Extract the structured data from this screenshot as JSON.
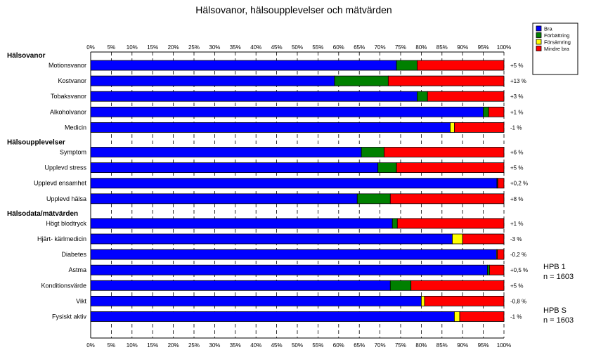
{
  "chart_data": {
    "type": "bar",
    "stacked": true,
    "orientation": "horizontal",
    "title": "Hälsovanor, hälsoupplevelser och mätvärden",
    "xlim": [
      0,
      100
    ],
    "xticks": [
      "0%",
      "5%",
      "10%",
      "15%",
      "20%",
      "25%",
      "30%",
      "35%",
      "40%",
      "45%",
      "50%",
      "55%",
      "60%",
      "65%",
      "70%",
      "75%",
      "80%",
      "85%",
      "90%",
      "95%",
      "100%"
    ],
    "grid": true,
    "legend_position": "top-right",
    "legend": [
      {
        "name": "Bra",
        "color": "#0000ff"
      },
      {
        "name": "Förbättring",
        "color": "#008000"
      },
      {
        "name": "Försämring",
        "color": "#ffff00"
      },
      {
        "name": "Mindre bra",
        "color": "#ff0000"
      }
    ],
    "groups": [
      {
        "label": "Hälsovanor",
        "rows": [
          {
            "category": "Motionsvanor",
            "values": [
              74,
              5,
              0,
              21
            ],
            "change": "+5 %"
          },
          {
            "category": "Kostvanor",
            "values": [
              59,
              13,
              0,
              28
            ],
            "change": "+13 %"
          },
          {
            "category": "Tobaksvanor",
            "values": [
              79,
              2.5,
              0,
              18.5
            ],
            "change": "+3 %"
          },
          {
            "category": "Alkoholvanor",
            "values": [
              95,
              1.3,
              0,
              3.7
            ],
            "change": "+1 %"
          },
          {
            "category": "Medicin",
            "values": [
              87,
              0,
              1,
              12
            ],
            "change": "-1 %"
          }
        ]
      },
      {
        "label": "Hälsoupplevelser",
        "rows": [
          {
            "category": "Symptom",
            "values": [
              65.5,
              5.5,
              0,
              29
            ],
            "change": "+6 %"
          },
          {
            "category": "Upplevd stress",
            "values": [
              69.5,
              4.5,
              0,
              26
            ],
            "change": "+5 %"
          },
          {
            "category": "Upplevd ensamhet",
            "values": [
              98.3,
              0.2,
              0,
              1.5
            ],
            "change": "+0,2 %"
          },
          {
            "category": "Upplevd hälsa",
            "values": [
              64.5,
              8,
              0,
              27.5
            ],
            "change": "+8 %"
          }
        ]
      },
      {
        "label": "Hälsodata/mätvärden",
        "rows": [
          {
            "category": "Högt blodtryck",
            "values": [
              73,
              1.2,
              0,
              25.8
            ],
            "change": "+1 %"
          },
          {
            "category": "Hjärt- kärlmedicin",
            "values": [
              87.5,
              0,
              2.5,
              10
            ],
            "change": "-3 %"
          },
          {
            "category": "Diabetes",
            "values": [
              98.2,
              0,
              0.2,
              1.6
            ],
            "change": "-0,2 %"
          },
          {
            "category": "Astma",
            "values": [
              96,
              0.5,
              0,
              3.5
            ],
            "change": "+0,5 %"
          },
          {
            "category": "Konditionsvärde",
            "values": [
              72.5,
              5,
              0,
              22.5
            ],
            "change": "+5 %"
          },
          {
            "category": "Vikt",
            "values": [
              80,
              0,
              0.8,
              19.2
            ],
            "change": "-0,8 %"
          },
          {
            "category": "Fysiskt aktiv",
            "values": [
              88,
              0,
              1.3,
              10.7
            ],
            "change": "-1 %"
          }
        ]
      }
    ],
    "annotations": [
      {
        "line1": "HPB 1",
        "line2": "n = 1603"
      },
      {
        "line1": "HPB S",
        "line2": "n = 1603"
      }
    ]
  }
}
